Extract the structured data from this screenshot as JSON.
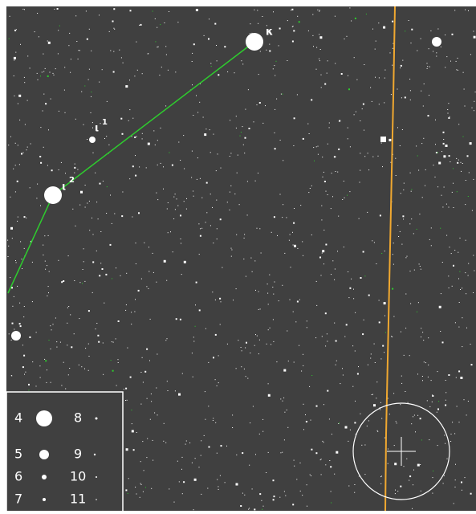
{
  "star_labels": [
    {
      "greek": "κ",
      "sup": ""
    },
    {
      "greek": "ι",
      "sup": "1"
    },
    {
      "greek": "ι",
      "sup": "2"
    }
  ],
  "legend": {
    "magnitudes": [
      "4",
      "5",
      "6",
      "7",
      "8",
      "9",
      "10",
      "11"
    ]
  }
}
